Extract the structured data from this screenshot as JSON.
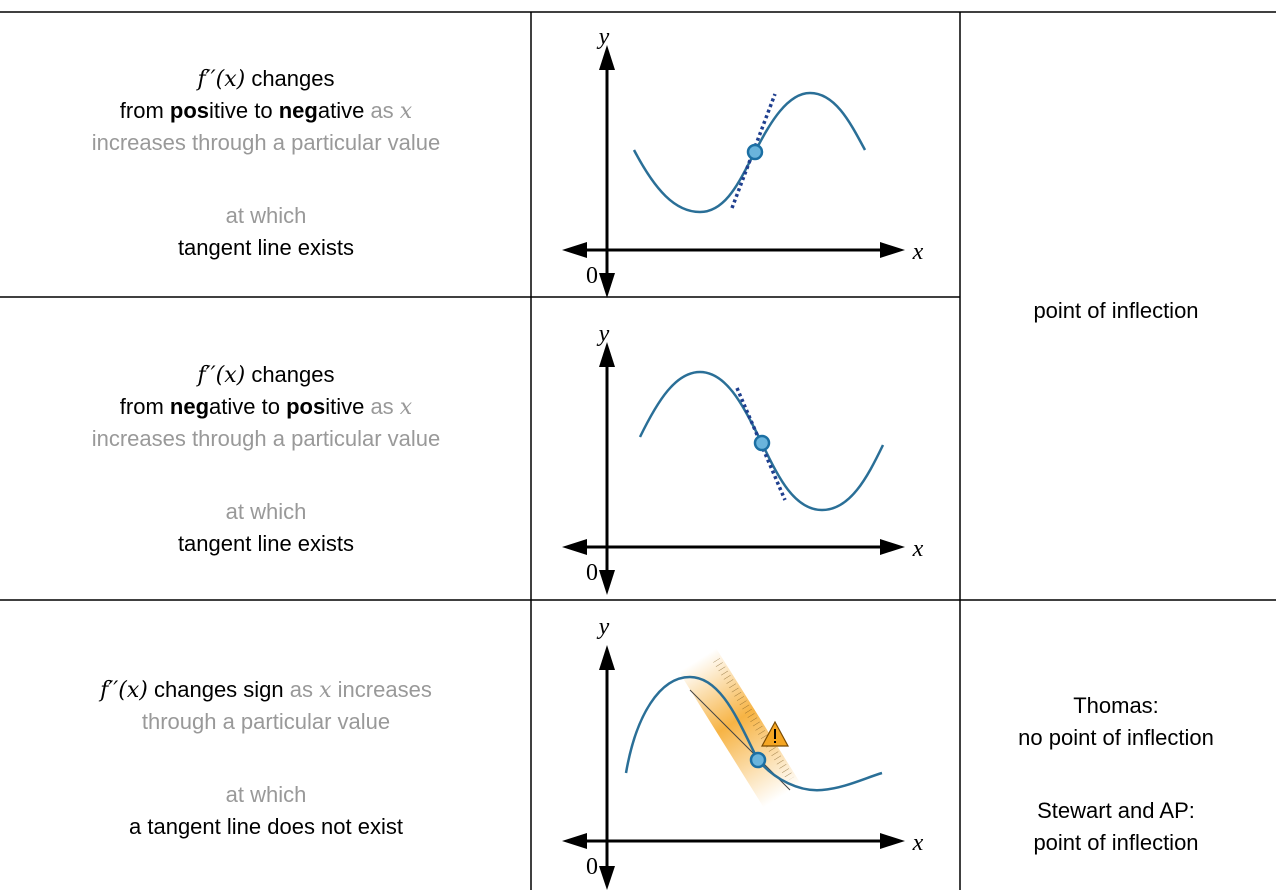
{
  "rows": [
    {
      "condition": {
        "paragraphs": [
          [
            [
              {
                "text": "f′′(x)",
                "style": "math"
              },
              {
                "text": " changes"
              }
            ],
            [
              {
                "text": "from "
              },
              {
                "text": "pos",
                "style": "bold"
              },
              {
                "text": "itive to "
              },
              {
                "text": "neg",
                "style": "bold"
              },
              {
                "text": "ative"
              },
              {
                "text": " as ",
                "style": "muted"
              },
              {
                "text": "x",
                "style": "math-muted"
              }
            ],
            [
              {
                "text": "increases through a particular value",
                "style": "muted"
              }
            ]
          ],
          [
            [
              {
                "text": "at which",
                "style": "muted"
              }
            ],
            [
              {
                "text": "tangent line exists"
              }
            ]
          ]
        ]
      },
      "graph": {
        "y_label": "y",
        "x_label": "x",
        "origin": "0"
      }
    },
    {
      "condition": {
        "paragraphs": [
          [
            [
              {
                "text": "f′′(x)",
                "style": "math"
              },
              {
                "text": " changes"
              }
            ],
            [
              {
                "text": "from "
              },
              {
                "text": "neg",
                "style": "bold"
              },
              {
                "text": "ative to "
              },
              {
                "text": "pos",
                "style": "bold"
              },
              {
                "text": "itive"
              },
              {
                "text": " as ",
                "style": "muted"
              },
              {
                "text": "x",
                "style": "math-muted"
              }
            ],
            [
              {
                "text": "increases through a particular value",
                "style": "muted"
              }
            ]
          ],
          [
            [
              {
                "text": "at which",
                "style": "muted"
              }
            ],
            [
              {
                "text": "tangent line exists"
              }
            ]
          ]
        ]
      },
      "graph": {
        "y_label": "y",
        "x_label": "x",
        "origin": "0"
      }
    },
    {
      "condition": {
        "paragraphs": [
          [
            [
              {
                "text": "f′′(x)",
                "style": "math"
              },
              {
                "text": " changes sign"
              },
              {
                "text": " as ",
                "style": "muted"
              },
              {
                "text": "x",
                "style": "math-muted"
              },
              {
                "text": " increases",
                "style": "muted"
              }
            ],
            [
              {
                "text": "through a particular value",
                "style": "muted"
              }
            ]
          ],
          [
            [
              {
                "text": "at which",
                "style": "muted"
              }
            ],
            [
              {
                "text": "a tangent line does not exist"
              }
            ]
          ]
        ]
      },
      "graph": {
        "y_label": "y",
        "x_label": "x",
        "origin": "0"
      }
    }
  ],
  "conclusions": [
    {
      "paragraphs": [
        [
          [
            {
              "text": "point of inflection"
            }
          ]
        ]
      ]
    },
    {
      "paragraphs": [
        [
          [
            {
              "text": "Thomas:"
            }
          ],
          [
            {
              "text": "no point of inflection"
            }
          ]
        ],
        [
          [
            {
              "text": "Stewart and AP:"
            }
          ],
          [
            {
              "text": "point of inflection"
            }
          ]
        ]
      ]
    }
  ]
}
